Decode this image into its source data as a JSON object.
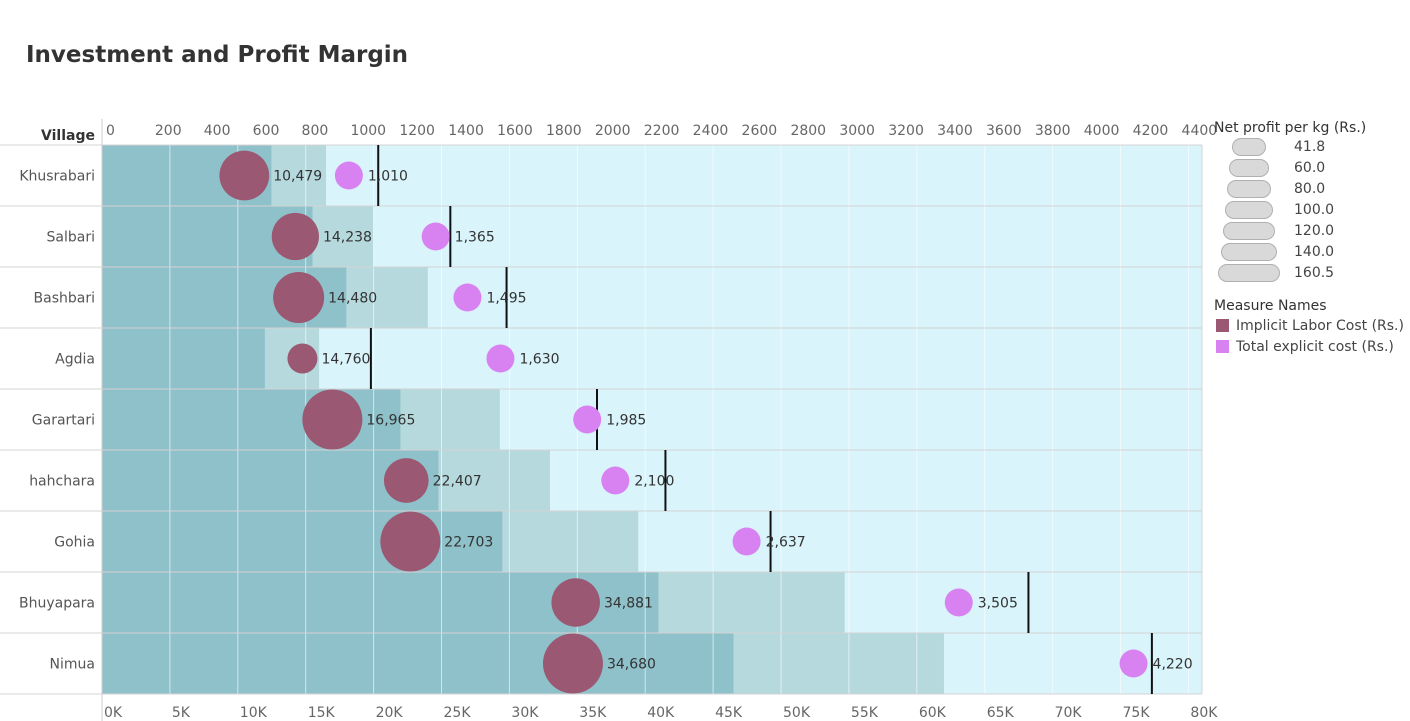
{
  "title": "Investment and Profit Margin",
  "colors": {
    "implicit": "#9b5872",
    "explicit": "#d882f2",
    "band_dark": "#8fc1ca",
    "band_mid": "#b6d9de",
    "band_light": "#d9f4fb"
  },
  "chart_data": {
    "type": "bar",
    "row_axis_label": "Village",
    "categories": [
      "Khusrabari",
      "Salbari",
      "Bashbari",
      "Agdia",
      "Garartari",
      "hahchara",
      "Gohia",
      "Bhuyapara",
      "Nimua"
    ],
    "top_axis": {
      "range": [
        0,
        4500
      ],
      "ticks": [
        0,
        200,
        400,
        600,
        800,
        1000,
        1200,
        1400,
        1600,
        1800,
        2000,
        2200,
        2400,
        2600,
        2800,
        3000,
        3200,
        3400,
        3600,
        3800,
        4000,
        4200,
        4400
      ]
    },
    "bottom_axis": {
      "range": [
        0,
        81000
      ],
      "ticks": [
        0,
        5000,
        10000,
        15000,
        20000,
        25000,
        30000,
        35000,
        40000,
        45000,
        50000,
        55000,
        60000,
        65000,
        70000,
        75000,
        80000
      ],
      "tick_labels": [
        "0K",
        "5K",
        "10K",
        "15K",
        "20K",
        "25K",
        "30K",
        "35K",
        "40K",
        "45K",
        "50K",
        "55K",
        "60K",
        "65K",
        "70K",
        "75K",
        "80K"
      ]
    },
    "band_edges": [
      [
        12500,
        16500,
        81000
      ],
      [
        15500,
        20000,
        81000
      ],
      [
        18000,
        24000,
        81000
      ],
      [
        12000,
        16000,
        81000
      ],
      [
        22000,
        29300,
        81000
      ],
      [
        24800,
        33000,
        81000
      ],
      [
        29500,
        39500,
        81000
      ],
      [
        41000,
        54700,
        81000
      ],
      [
        46500,
        62000,
        81000
      ]
    ],
    "series": [
      {
        "name": "Implicit Labor Cost (Rs.)",
        "axis": "bottom",
        "values": [
          10479,
          14238,
          14480,
          14760,
          16965,
          22407,
          22703,
          34881,
          34680
        ],
        "labels": [
          "10,479",
          "14,238",
          "14,480",
          "14,760",
          "16,965",
          "22,407",
          "22,703",
          "34,881",
          "34,680"
        ],
        "net_profit_per_kg": [
          120,
          110,
          125,
          41.8,
          160.5,
          100,
          160.5,
          115,
          160.5
        ]
      },
      {
        "name": "Total explicit cost  (Rs.)",
        "axis": "top",
        "values": [
          1010,
          1365,
          1495,
          1630,
          1985,
          2100,
          2637,
          3505,
          4220
        ],
        "labels": [
          "1,010",
          "1,365",
          "1,495",
          "1,630",
          "1,985",
          "2,100",
          "2,637",
          "3,505",
          "4,220"
        ]
      }
    ],
    "reference_lines": [
      1130,
      1425,
      1655,
      1100,
      2025,
      2305,
      2735,
      3790,
      4295
    ],
    "grid": true
  },
  "legend": {
    "size_title": "Net profit per kg (Rs.)",
    "size_values": [
      "41.8",
      "60.0",
      "80.0",
      "100.0",
      "120.0",
      "140.0",
      "160.5"
    ],
    "color_title": "Measure Names",
    "color_items": [
      "Implicit Labor Cost (Rs.)",
      "Total explicit cost  (Rs.)"
    ]
  }
}
